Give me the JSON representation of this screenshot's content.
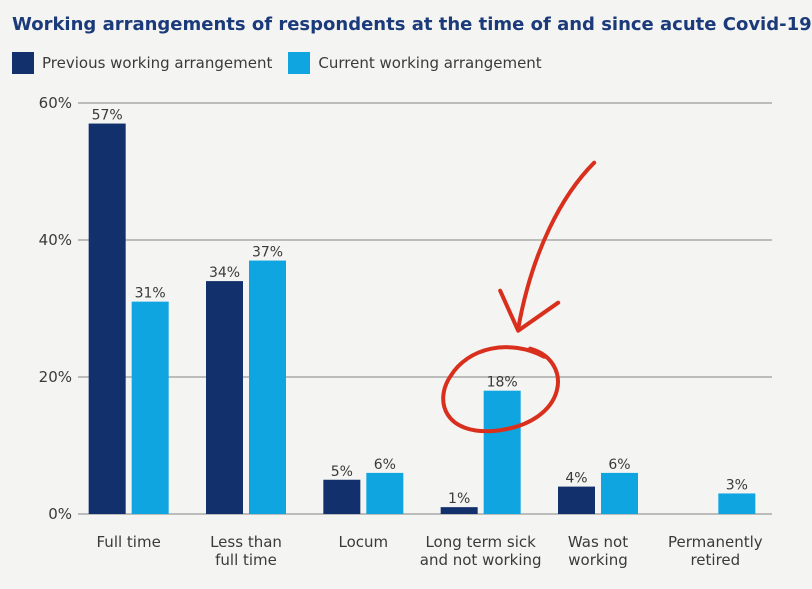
{
  "chart_data": {
    "type": "bar",
    "title": "Working arrangements of respondents at the time of and since acute Covid-19",
    "xlabel": "",
    "ylabel": "",
    "ylim": [
      0,
      60
    ],
    "yticks": [
      "0%",
      "20%",
      "40%",
      "60%"
    ],
    "ytick_values": [
      0,
      20,
      40,
      60
    ],
    "categories": [
      [
        "Full time"
      ],
      [
        "Less than",
        "full time"
      ],
      [
        "Locum"
      ],
      [
        "Long term sick",
        "and not working"
      ],
      [
        "Was not",
        "working"
      ],
      [
        "Permanently",
        "retired"
      ]
    ],
    "series": [
      {
        "name": "Previous working arrangement",
        "color": "#12306b",
        "values": [
          57,
          34,
          5,
          1,
          4,
          null
        ],
        "labels": [
          "57%",
          "34%",
          "5%",
          "1%",
          "4%",
          ""
        ]
      },
      {
        "name": "Current working arrangement",
        "color": "#0ea5e0",
        "values": [
          31,
          37,
          6,
          18,
          6,
          3
        ],
        "labels": [
          "31%",
          "37%",
          "6%",
          "18%",
          "6%",
          "3%"
        ]
      }
    ],
    "annotation": {
      "type": "hand-drawn circle and arrow",
      "target_category_index": 3,
      "target_series_index": 1,
      "color": "#d9301e"
    }
  }
}
